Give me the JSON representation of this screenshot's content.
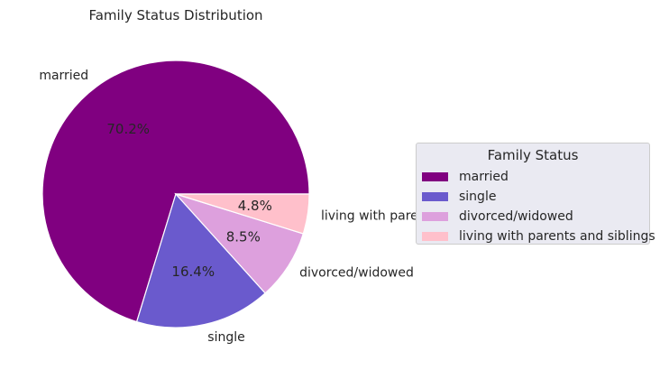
{
  "chart_data": {
    "type": "pie",
    "title": "Family Status Distribution",
    "labels": [
      "married",
      "single",
      "divorced/widowed",
      "living with parents and siblings"
    ],
    "values": [
      70.2,
      16.4,
      8.5,
      4.8
    ],
    "percent_labels": [
      "70.2%",
      "16.4%",
      "8.5%",
      "4.8%"
    ],
    "colors": [
      "#800080",
      "#6a5acd",
      "#dda0dd",
      "#ffc0cb"
    ],
    "legend": {
      "title": "Family Status",
      "placement": "right"
    }
  }
}
